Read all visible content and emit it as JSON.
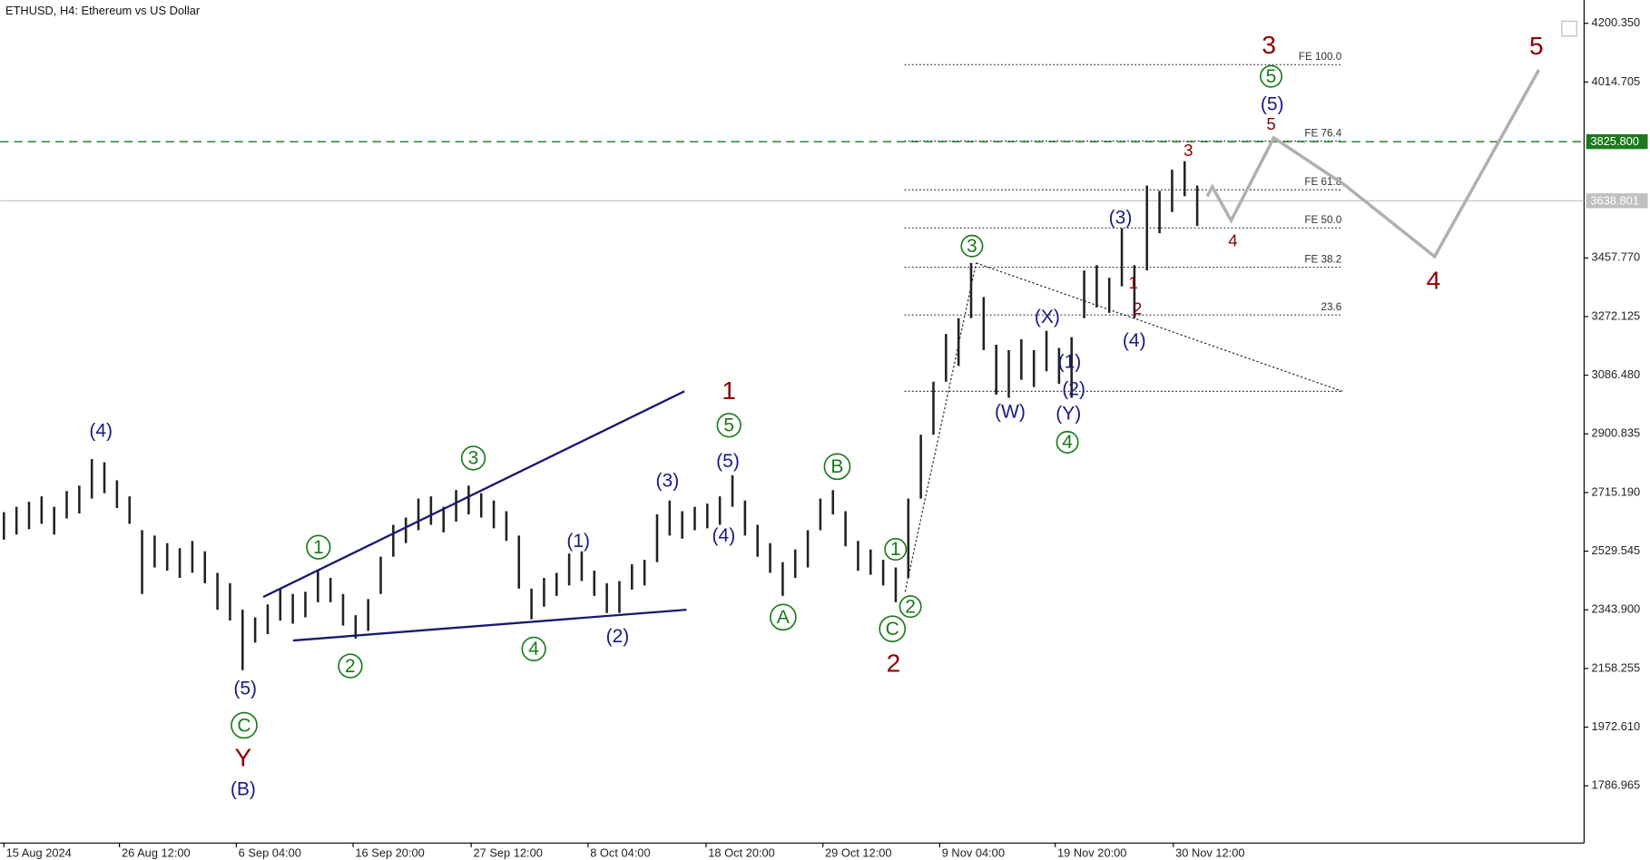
{
  "chart_data": {
    "type": "ohlc",
    "title": "ETHUSD, H4:  Ethereum vs US Dollar",
    "color": "#222222",
    "high": [
      2653,
      2670,
      2686,
      2703,
      2670,
      2720,
      2737,
      2821,
      2811,
      2754,
      2703,
      2596,
      2579,
      2555,
      2539,
      2562,
      2529,
      2461,
      2428,
      2344,
      2320,
      2361,
      2411,
      2394,
      2401,
      2468,
      2445,
      2394,
      2327,
      2378,
      2512,
      2613,
      2636,
      2696,
      2703,
      2670,
      2723,
      2737,
      2713,
      2690,
      2656,
      2579,
      2411,
      2445,
      2461,
      2522,
      2529,
      2468,
      2428,
      2435,
      2488,
      2502,
      2646,
      2690,
      2656,
      2670,
      2680,
      2703,
      2770,
      2690,
      2613,
      2555,
      2495,
      2535,
      2596,
      2696,
      2723,
      2656,
      2562,
      2535,
      2502,
      2478,
      2696,
      2898,
      3066,
      3217,
      3267,
      3442,
      3334,
      3183,
      3166,
      3200,
      3166,
      3227,
      3173,
      3207,
      3418,
      3435,
      3395,
      3552,
      3435,
      3687,
      3670,
      3737,
      3764,
      3687
    ],
    "low": [
      2566,
      2582,
      2599,
      2616,
      2582,
      2633,
      2649,
      2696,
      2713,
      2666,
      2616,
      2394,
      2478,
      2468,
      2445,
      2461,
      2428,
      2344,
      2310,
      2153,
      2240,
      2267,
      2310,
      2300,
      2320,
      2368,
      2368,
      2294,
      2253,
      2277,
      2394,
      2512,
      2555,
      2596,
      2613,
      2589,
      2623,
      2646,
      2636,
      2602,
      2562,
      2411,
      2314,
      2354,
      2388,
      2421,
      2435,
      2388,
      2334,
      2334,
      2408,
      2421,
      2495,
      2579,
      2569,
      2596,
      2602,
      2613,
      2670,
      2579,
      2512,
      2461,
      2388,
      2445,
      2478,
      2596,
      2646,
      2545,
      2468,
      2455,
      2421,
      2368,
      2445,
      2696,
      2898,
      3066,
      3116,
      3267,
      3166,
      3025,
      3015,
      3072,
      3049,
      3099,
      3059,
      3015,
      3267,
      3301,
      3284,
      3368,
      3267,
      3418,
      3536,
      3603,
      3653,
      3559
    ],
    "xlim": [
      -0.3,
      125.8
    ],
    "xticks": [
      {
        "value": 0,
        "label": "15 Aug 2024"
      },
      {
        "value": 9.2,
        "label": "26 Aug 12:00"
      },
      {
        "value": 18.5,
        "label": "6 Sep 04:00"
      },
      {
        "value": 27.8,
        "label": "16 Sep 20:00"
      },
      {
        "value": 37.2,
        "label": "27 Sep 12:00"
      },
      {
        "value": 46.5,
        "label": "8 Oct 04:00"
      },
      {
        "value": 55.9,
        "label": "18 Oct 20:00"
      },
      {
        "value": 65.2,
        "label": "29 Oct 12:00"
      },
      {
        "value": 74.5,
        "label": "9 Nov 04:00"
      },
      {
        "value": 83.7,
        "label": "19 Nov 20:00"
      },
      {
        "value": 93.1,
        "label": "30 Nov 12:00"
      }
    ],
    "ylim": [
      1605.7,
      4274.2
    ],
    "yticks": [
      {
        "value": 4200.35,
        "label": "4200.350"
      },
      4014.705,
      {
        "value": 3457.77,
        "label": "3457.770"
      },
      3272.125,
      {
        "value": 3086.48,
        "label": "3086.480"
      },
      2900.835,
      {
        "value": 2715.19,
        "label": "2715.190"
      },
      2529.545,
      {
        "value": 2343.9,
        "label": "2343.900"
      },
      2158.255,
      {
        "value": 1972.61,
        "label": "1972.610"
      },
      1786.965
    ],
    "price_lines": [
      {
        "value": 3825.8,
        "label": "3825.800",
        "color": "#1a7a1a",
        "dashed": true
      },
      {
        "value": 3638.801,
        "label": "3638.801",
        "color": "#c0c0c0",
        "dashed": false
      }
    ],
    "levels_x": [
      71.7,
      106.5
    ],
    "levels": [
      {
        "value": 4069.4,
        "label": "FE 100.0"
      },
      {
        "value": 3827.7,
        "label": "FE 76.4"
      },
      {
        "value": 3673.3,
        "label": "FE 61.8"
      },
      {
        "value": 3552.5,
        "label": "FE 50.0"
      },
      {
        "value": 3428.3,
        "label": "FE 38.2"
      },
      {
        "value": 3277.2,
        "label": "23.6"
      },
      {
        "value": 3035.5
      }
    ],
    "forecast": {
      "color": "#b0b0b0",
      "x": [
        95.8,
        96.2,
        97.7,
        101.1,
        106.8,
        113.9,
        122.2
      ],
      "values": [
        3653,
        3683,
        3576,
        3838,
        3687,
        3462,
        4053
      ]
    },
    "wave_labels": [
      "1",
      "2",
      "3",
      "4",
      "5",
      "Y",
      "3",
      "4",
      "5",
      "1",
      "2",
      "1",
      "2",
      "3",
      "4",
      "5",
      "1",
      "2",
      "3",
      "4",
      "5",
      "C",
      "A",
      "B",
      "C",
      "(4)",
      "(5)",
      "(B)",
      "(1)",
      "(2)",
      "(3)",
      "(5)",
      "(4)",
      "(W)",
      "(X)",
      "(1)",
      "(2)",
      "(Y)",
      "(3)",
      "(4)",
      "(5)"
    ]
  }
}
